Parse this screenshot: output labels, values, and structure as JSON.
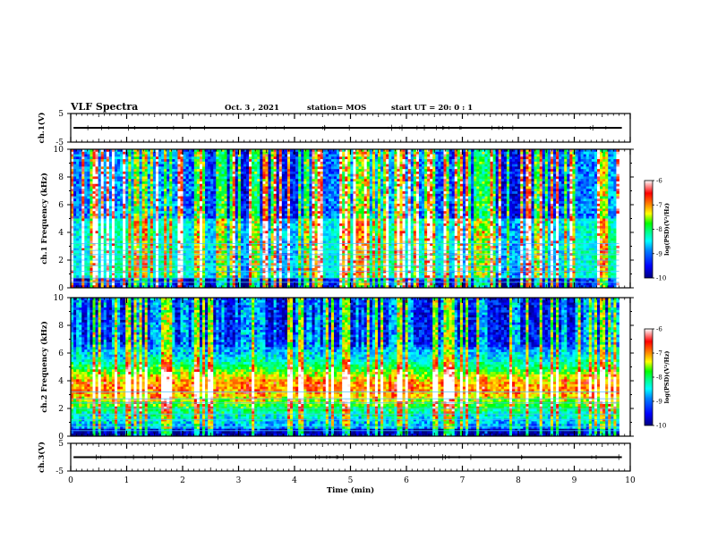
{
  "header": {
    "title": "VLF Spectra",
    "date": "Oct. 3 , 2021",
    "station": "station= MOS",
    "start": "start UT =  20: 0 : 1"
  },
  "chart_data": [
    {
      "id": "ch1-waveform",
      "type": "line",
      "ylabel": "ch.1(V)",
      "ylim": [
        -5,
        5
      ],
      "y_tick_labels": [
        "5",
        "-5"
      ],
      "xlim": [
        0,
        10
      ],
      "series": [
        {
          "x": [
            0.05,
            9.85
          ],
          "values": [
            0,
            0
          ]
        }
      ]
    },
    {
      "id": "ch1-spectrogram",
      "type": "heatmap",
      "ylabel": "ch.1 Frequency (kHz)",
      "ylim": [
        0,
        10
      ],
      "y_tick_labels": [
        "0",
        "2",
        "4",
        "6",
        "8",
        "10"
      ],
      "xlim": [
        0,
        10
      ],
      "data_end_min": 9.8,
      "horizontal_lines_khz": [
        0.4,
        0.7,
        1.2,
        1.6,
        2.0,
        2.4,
        2.7,
        3.2
      ],
      "colorbar": {
        "label": "log(PSD)(V²/Hz)",
        "range": [
          -10,
          -6
        ],
        "tick_labels": [
          "-6",
          "-7",
          "-8",
          "-9",
          "-10"
        ]
      }
    },
    {
      "id": "ch2-spectrogram",
      "type": "heatmap",
      "ylabel": "ch.2 Frequency (kHz)",
      "ylim": [
        0,
        10
      ],
      "y_tick_labels": [
        "0",
        "2",
        "4",
        "6",
        "8",
        "10"
      ],
      "xlim": [
        0,
        10
      ],
      "data_end_min": 9.8,
      "horizontal_lines_khz": [
        0.4,
        0.7,
        1.2,
        1.6,
        2.0,
        2.4,
        2.7,
        3.2
      ],
      "colorbar": {
        "label": "log(PSD)(V²/Hz)",
        "range": [
          -10,
          -6
        ],
        "tick_labels": [
          "-6",
          "-7",
          "-8",
          "-9",
          "-10"
        ]
      }
    },
    {
      "id": "ch3-waveform",
      "type": "line",
      "ylabel": "ch.3(V)",
      "ylim": [
        -5,
        5
      ],
      "y_tick_labels": [
        "5",
        "-5"
      ],
      "xlim": [
        0,
        10
      ],
      "series": [
        {
          "x": [
            0.05,
            9.85
          ],
          "values": [
            0,
            0
          ]
        }
      ]
    }
  ],
  "x_axis": {
    "label": "Time (min)",
    "range": [
      0,
      10
    ],
    "tick_labels": [
      "0",
      "1",
      "2",
      "3",
      "4",
      "5",
      "6",
      "7",
      "8",
      "9",
      "10"
    ]
  },
  "colormap": [
    "#000080",
    "#0000ff",
    "#0080ff",
    "#00ffff",
    "#00ff80",
    "#00ff00",
    "#ffff00",
    "#ff8000",
    "#ff0000",
    "#ffffff"
  ]
}
